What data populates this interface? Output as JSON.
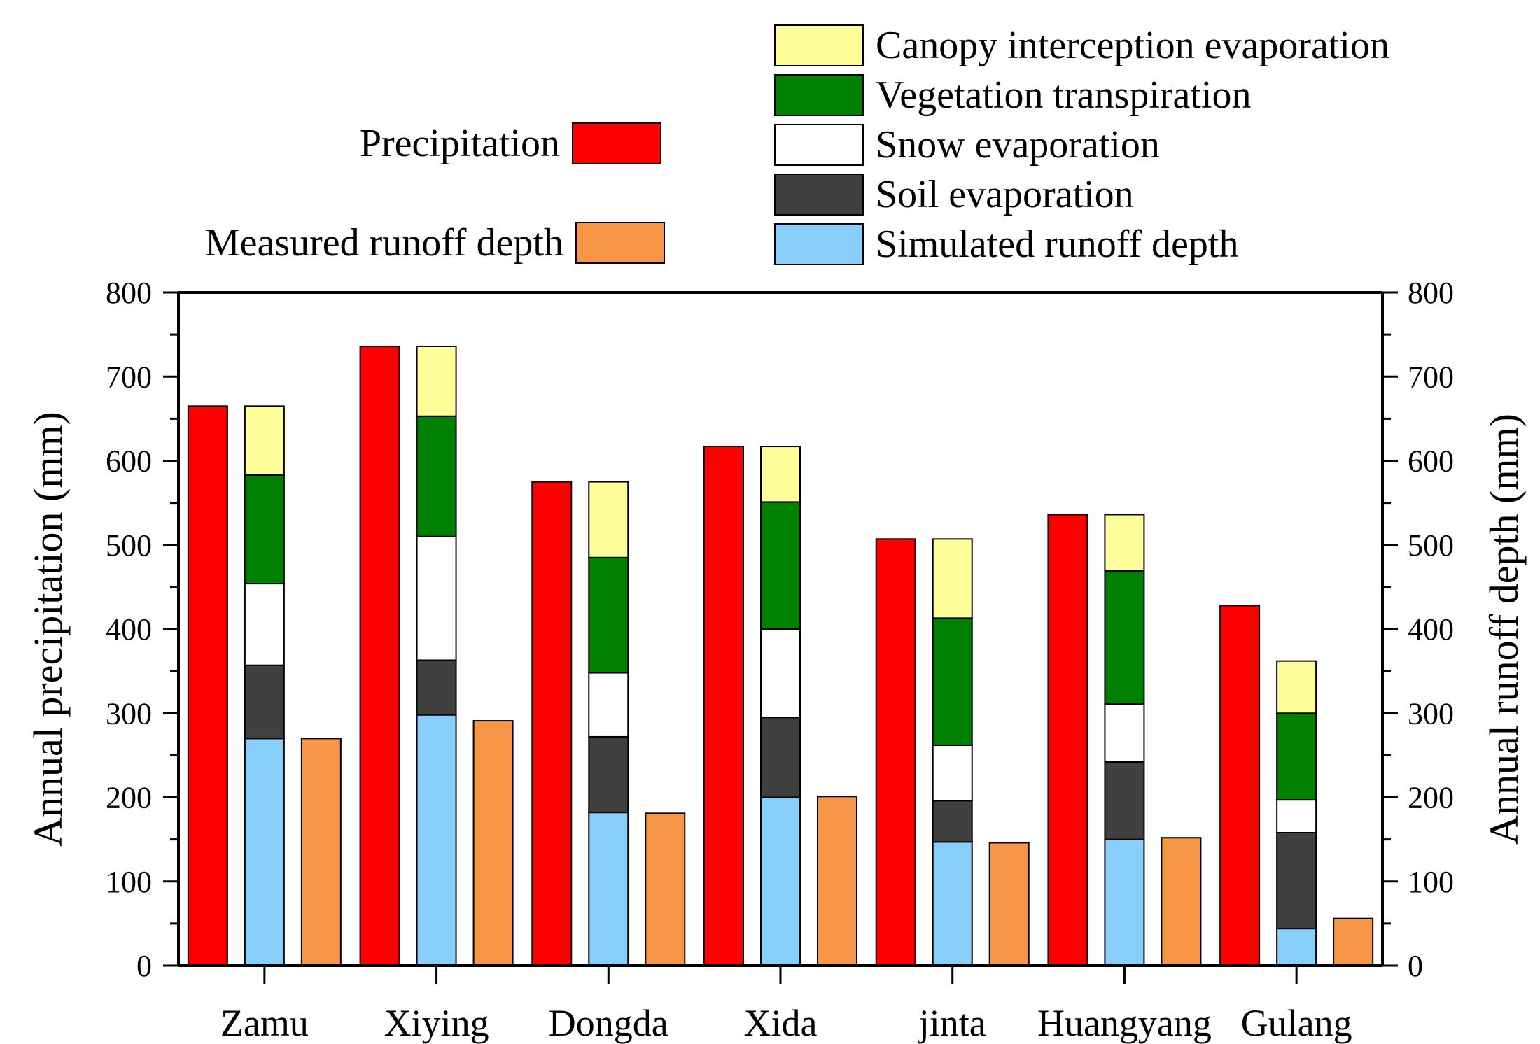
{
  "chart_data": {
    "type": "bar",
    "categories": [
      "Zamu",
      "Xiying",
      "Dongda",
      "Xida",
      "jinta",
      "Huangyang",
      "Gulang"
    ],
    "left_axis": {
      "label": "Annual precipitation (mm)",
      "ylim": [
        0,
        800
      ],
      "ticks": [
        "0",
        "100",
        "200",
        "300",
        "400",
        "500",
        "600",
        "700",
        "800"
      ]
    },
    "right_axis": {
      "label": "Annual runoff depth (mm)",
      "ylim": [
        0,
        800
      ],
      "ticks": [
        "0",
        "100",
        "200",
        "300",
        "400",
        "500",
        "600",
        "700",
        "800"
      ]
    },
    "grid": false,
    "legend": [
      {
        "key": "precipitation",
        "name": "Precipitation",
        "color": "#ff0000"
      },
      {
        "key": "measured",
        "name": "Measured runoff depth",
        "color": "#f79646"
      },
      {
        "key": "canopy",
        "name": "Canopy interception evaporation",
        "color": "#ffff99"
      },
      {
        "key": "veg",
        "name": "Vegetation transpiration",
        "color": "#008000"
      },
      {
        "key": "snow",
        "name": "Snow evaporation",
        "color": "#ffffff"
      },
      {
        "key": "soil",
        "name": "Soil evaporation",
        "color": "#404040"
      },
      {
        "key": "simulated",
        "name": "Simulated runoff depth",
        "color": "#87cefa"
      }
    ],
    "series": {
      "precipitation": [
        665,
        736,
        575,
        617,
        507,
        536,
        428
      ],
      "stack": {
        "simulated": [
          270,
          298,
          182,
          200,
          147,
          150,
          44
        ],
        "soil": [
          87,
          65,
          90,
          95,
          49,
          92,
          114
        ],
        "snow": [
          97,
          147,
          76,
          105,
          66,
          69,
          39
        ],
        "veg": [
          129,
          143,
          137,
          151,
          151,
          158,
          103
        ],
        "canopy": [
          82,
          83,
          90,
          66,
          94,
          67,
          62
        ]
      },
      "measured": [
        270,
        291,
        181,
        201,
        146,
        152,
        56
      ]
    }
  }
}
